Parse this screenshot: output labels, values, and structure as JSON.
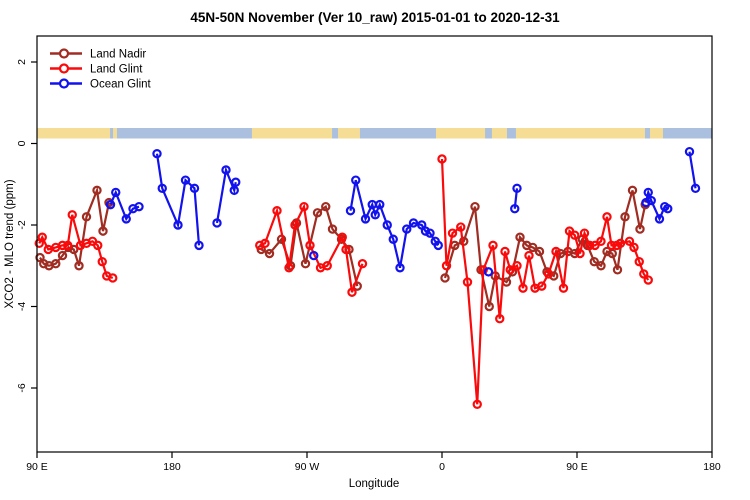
{
  "title": "45N-50N November (Ver 10_raw)   2015-01-01 to 2020-12-31",
  "legend": {
    "items": [
      {
        "label": "Land Nadir",
        "color": "#A02C22"
      },
      {
        "label": "Land Glint",
        "color": "#FA0A0A"
      },
      {
        "label": "Ocean Glint",
        "color": "#1212EE"
      }
    ]
  },
  "chart_data": {
    "type": "line",
    "title": "45N-50N November (Ver 10_raw)   2015-01-01 to 2020-12-31",
    "xlabel": "Longitude",
    "ylabel": "XCO2 - MLO trend (ppm)",
    "x_axis": {
      "range": [
        90,
        540
      ],
      "ticks": [
        90,
        180,
        270,
        360,
        450,
        540
      ],
      "tick_labels": [
        "90 E",
        "180",
        "90 W",
        "0",
        "90 E",
        "180"
      ],
      "note": "longitude wraps eastward from 90E around the globe to 180"
    },
    "y_axis": {
      "range": [
        -7.6,
        2.6
      ],
      "ticks": [
        2,
        0,
        -2,
        -4,
        -6
      ],
      "tick_labels": [
        "2",
        "0",
        "-2",
        "-4",
        "-6"
      ]
    },
    "grid": "off",
    "legend_position": "top-left",
    "map_strip": {
      "description": "land/ocean strip for 45N-50N drawn just above y=0",
      "land_color": "#F6DD96",
      "ocean_color": "#ABC0DE",
      "land_segments_lon": [
        [
          90,
          138.7
        ],
        [
          140.7,
          143.3
        ],
        [
          233.3,
          286.7
        ],
        [
          290.7,
          305.3
        ],
        [
          356,
          388.7
        ],
        [
          393.3,
          403.3
        ],
        [
          409.3,
          495.3
        ],
        [
          498.7,
          507.3
        ]
      ]
    },
    "series": [
      {
        "name": "Land Nadir",
        "color": "#A02C22",
        "points": [
          [
            92,
            -2.8
          ],
          [
            94.5,
            -2.95
          ],
          [
            98,
            -3.0
          ],
          [
            102.5,
            -2.95
          ],
          [
            107,
            -2.75
          ],
          [
            111,
            -2.55
          ],
          [
            114.5,
            -2.6
          ],
          [
            118,
            -3.0
          ],
          [
            123,
            -1.8
          ],
          [
            130,
            -1.15
          ],
          [
            134,
            -2.15
          ],
          [
            138,
            -1.45
          ],
          [
            239.5,
            -2.6
          ],
          [
            245,
            -2.7
          ],
          [
            253,
            -2.35
          ],
          [
            259,
            -3.0
          ],
          [
            263,
            -1.95
          ],
          [
            269,
            -2.95
          ],
          [
            277,
            -1.7
          ],
          [
            282.5,
            -1.55
          ],
          [
            287,
            -2.1
          ],
          [
            293,
            -2.35
          ],
          [
            298,
            -2.6
          ],
          [
            303.5,
            -3.5
          ],
          [
            362,
            -3.3
          ],
          [
            368.5,
            -2.5
          ],
          [
            374.5,
            -2.4
          ],
          [
            382,
            -1.55
          ],
          [
            386,
            -3.1
          ],
          [
            391.5,
            -4.0
          ],
          [
            395.5,
            -3.25
          ],
          [
            403,
            -3.4
          ],
          [
            407,
            -3.15
          ],
          [
            412,
            -2.3
          ],
          [
            416.5,
            -2.5
          ],
          [
            420.5,
            -2.55
          ],
          [
            425,
            -2.65
          ],
          [
            430,
            -3.15
          ],
          [
            434.5,
            -3.25
          ],
          [
            439,
            -2.7
          ],
          [
            444,
            -2.65
          ],
          [
            448.5,
            -2.7
          ],
          [
            453.5,
            -2.35
          ],
          [
            457,
            -2.5
          ],
          [
            461.5,
            -2.9
          ],
          [
            466,
            -3.0
          ],
          [
            470,
            -2.65
          ],
          [
            473.5,
            -2.7
          ],
          [
            477,
            -3.1
          ],
          [
            482,
            -1.8
          ],
          [
            487,
            -1.15
          ],
          [
            492,
            -2.1
          ],
          [
            495.5,
            -1.5
          ]
        ]
      },
      {
        "name": "Land Glint",
        "color": "#FA0A0A",
        "points": [
          [
            91.5,
            -2.45
          ],
          [
            93.5,
            -2.3
          ],
          [
            97.5,
            -2.6
          ],
          [
            102.5,
            -2.55
          ],
          [
            107,
            -2.5
          ],
          [
            110.5,
            -2.5
          ],
          [
            113.5,
            -1.75
          ],
          [
            119,
            -2.5
          ],
          [
            123,
            -2.45
          ],
          [
            127,
            -2.4
          ],
          [
            130.5,
            -2.5
          ],
          [
            133.5,
            -2.9
          ],
          [
            136.5,
            -3.25
          ],
          [
            140.5,
            -3.3
          ],
          [
            238.5,
            -2.5
          ],
          [
            242,
            -2.45
          ],
          [
            250,
            -1.65
          ],
          [
            258,
            -3.05
          ],
          [
            262,
            -2.0
          ],
          [
            268,
            -1.55
          ],
          [
            272,
            -2.5
          ],
          [
            279,
            -3.05
          ],
          [
            283.5,
            -3.0
          ],
          [
            293.5,
            -2.3
          ],
          [
            296,
            -2.6
          ],
          [
            300,
            -3.65
          ],
          [
            307,
            -2.95
          ],
          [
            360,
            -0.38
          ],
          [
            363,
            -3.0
          ],
          [
            367,
            -2.2
          ],
          [
            372.5,
            -2.05
          ],
          [
            377,
            -3.4
          ],
          [
            383.5,
            -6.4
          ],
          [
            387.5,
            -3.1
          ],
          [
            394,
            -2.5
          ],
          [
            398.5,
            -4.3
          ],
          [
            402,
            -2.65
          ],
          [
            405.5,
            -3.1
          ],
          [
            410,
            -3.0
          ],
          [
            414,
            -3.55
          ],
          [
            418,
            -2.75
          ],
          [
            422,
            -3.55
          ],
          [
            426.5,
            -3.5
          ],
          [
            431,
            -3.2
          ],
          [
            436,
            -2.65
          ],
          [
            441,
            -3.55
          ],
          [
            445,
            -2.15
          ],
          [
            448.5,
            -2.25
          ],
          [
            452,
            -2.7
          ],
          [
            455,
            -2.2
          ],
          [
            458.5,
            -2.5
          ],
          [
            462,
            -2.5
          ],
          [
            466,
            -2.4
          ],
          [
            470,
            -1.8
          ],
          [
            473,
            -2.5
          ],
          [
            476.5,
            -2.5
          ],
          [
            479,
            -2.45
          ],
          [
            485,
            -2.4
          ],
          [
            488,
            -2.55
          ],
          [
            491.5,
            -2.9
          ],
          [
            494.5,
            -3.2
          ],
          [
            497.5,
            -3.35
          ]
        ]
      },
      {
        "name": "Ocean Glint",
        "color": "#1212EE",
        "points": [
          [
            139,
            -1.5
          ],
          [
            142.5,
            -1.2
          ],
          [
            149.5,
            -1.85
          ],
          [
            154,
            -1.6
          ],
          [
            158,
            -1.55
          ],
          [
            170,
            -0.25
          ],
          [
            173.5,
            -1.1
          ],
          [
            184,
            -2.0
          ],
          [
            189,
            -0.9
          ],
          [
            195,
            -1.1
          ],
          [
            198,
            -2.5
          ],
          [
            210,
            -1.95
          ],
          [
            216,
            -0.65
          ],
          [
            221.5,
            -1.15
          ],
          [
            222.5,
            -0.95
          ],
          [
            274.5,
            -2.75
          ],
          [
            299,
            -1.65
          ],
          [
            302.5,
            -0.9
          ],
          [
            309,
            -1.85
          ],
          [
            313.5,
            -1.5
          ],
          [
            315.5,
            -1.75
          ],
          [
            318.5,
            -1.5
          ],
          [
            323.5,
            -2.0
          ],
          [
            327.5,
            -2.35
          ],
          [
            332,
            -3.05
          ],
          [
            336.5,
            -2.1
          ],
          [
            341,
            -1.95
          ],
          [
            346.5,
            -2.0
          ],
          [
            349,
            -2.15
          ],
          [
            352,
            -2.2
          ],
          [
            355.5,
            -2.4
          ],
          [
            357.5,
            -2.5
          ],
          [
            391,
            -3.15
          ],
          [
            408.5,
            -1.6
          ],
          [
            410,
            -1.1
          ],
          [
            496,
            -1.45
          ],
          [
            497.5,
            -1.2
          ],
          [
            499.5,
            -1.4
          ],
          [
            505,
            -1.85
          ],
          [
            508.5,
            -1.55
          ],
          [
            510.5,
            -1.6
          ],
          [
            525,
            -0.2
          ],
          [
            529,
            -1.1
          ]
        ]
      }
    ]
  }
}
